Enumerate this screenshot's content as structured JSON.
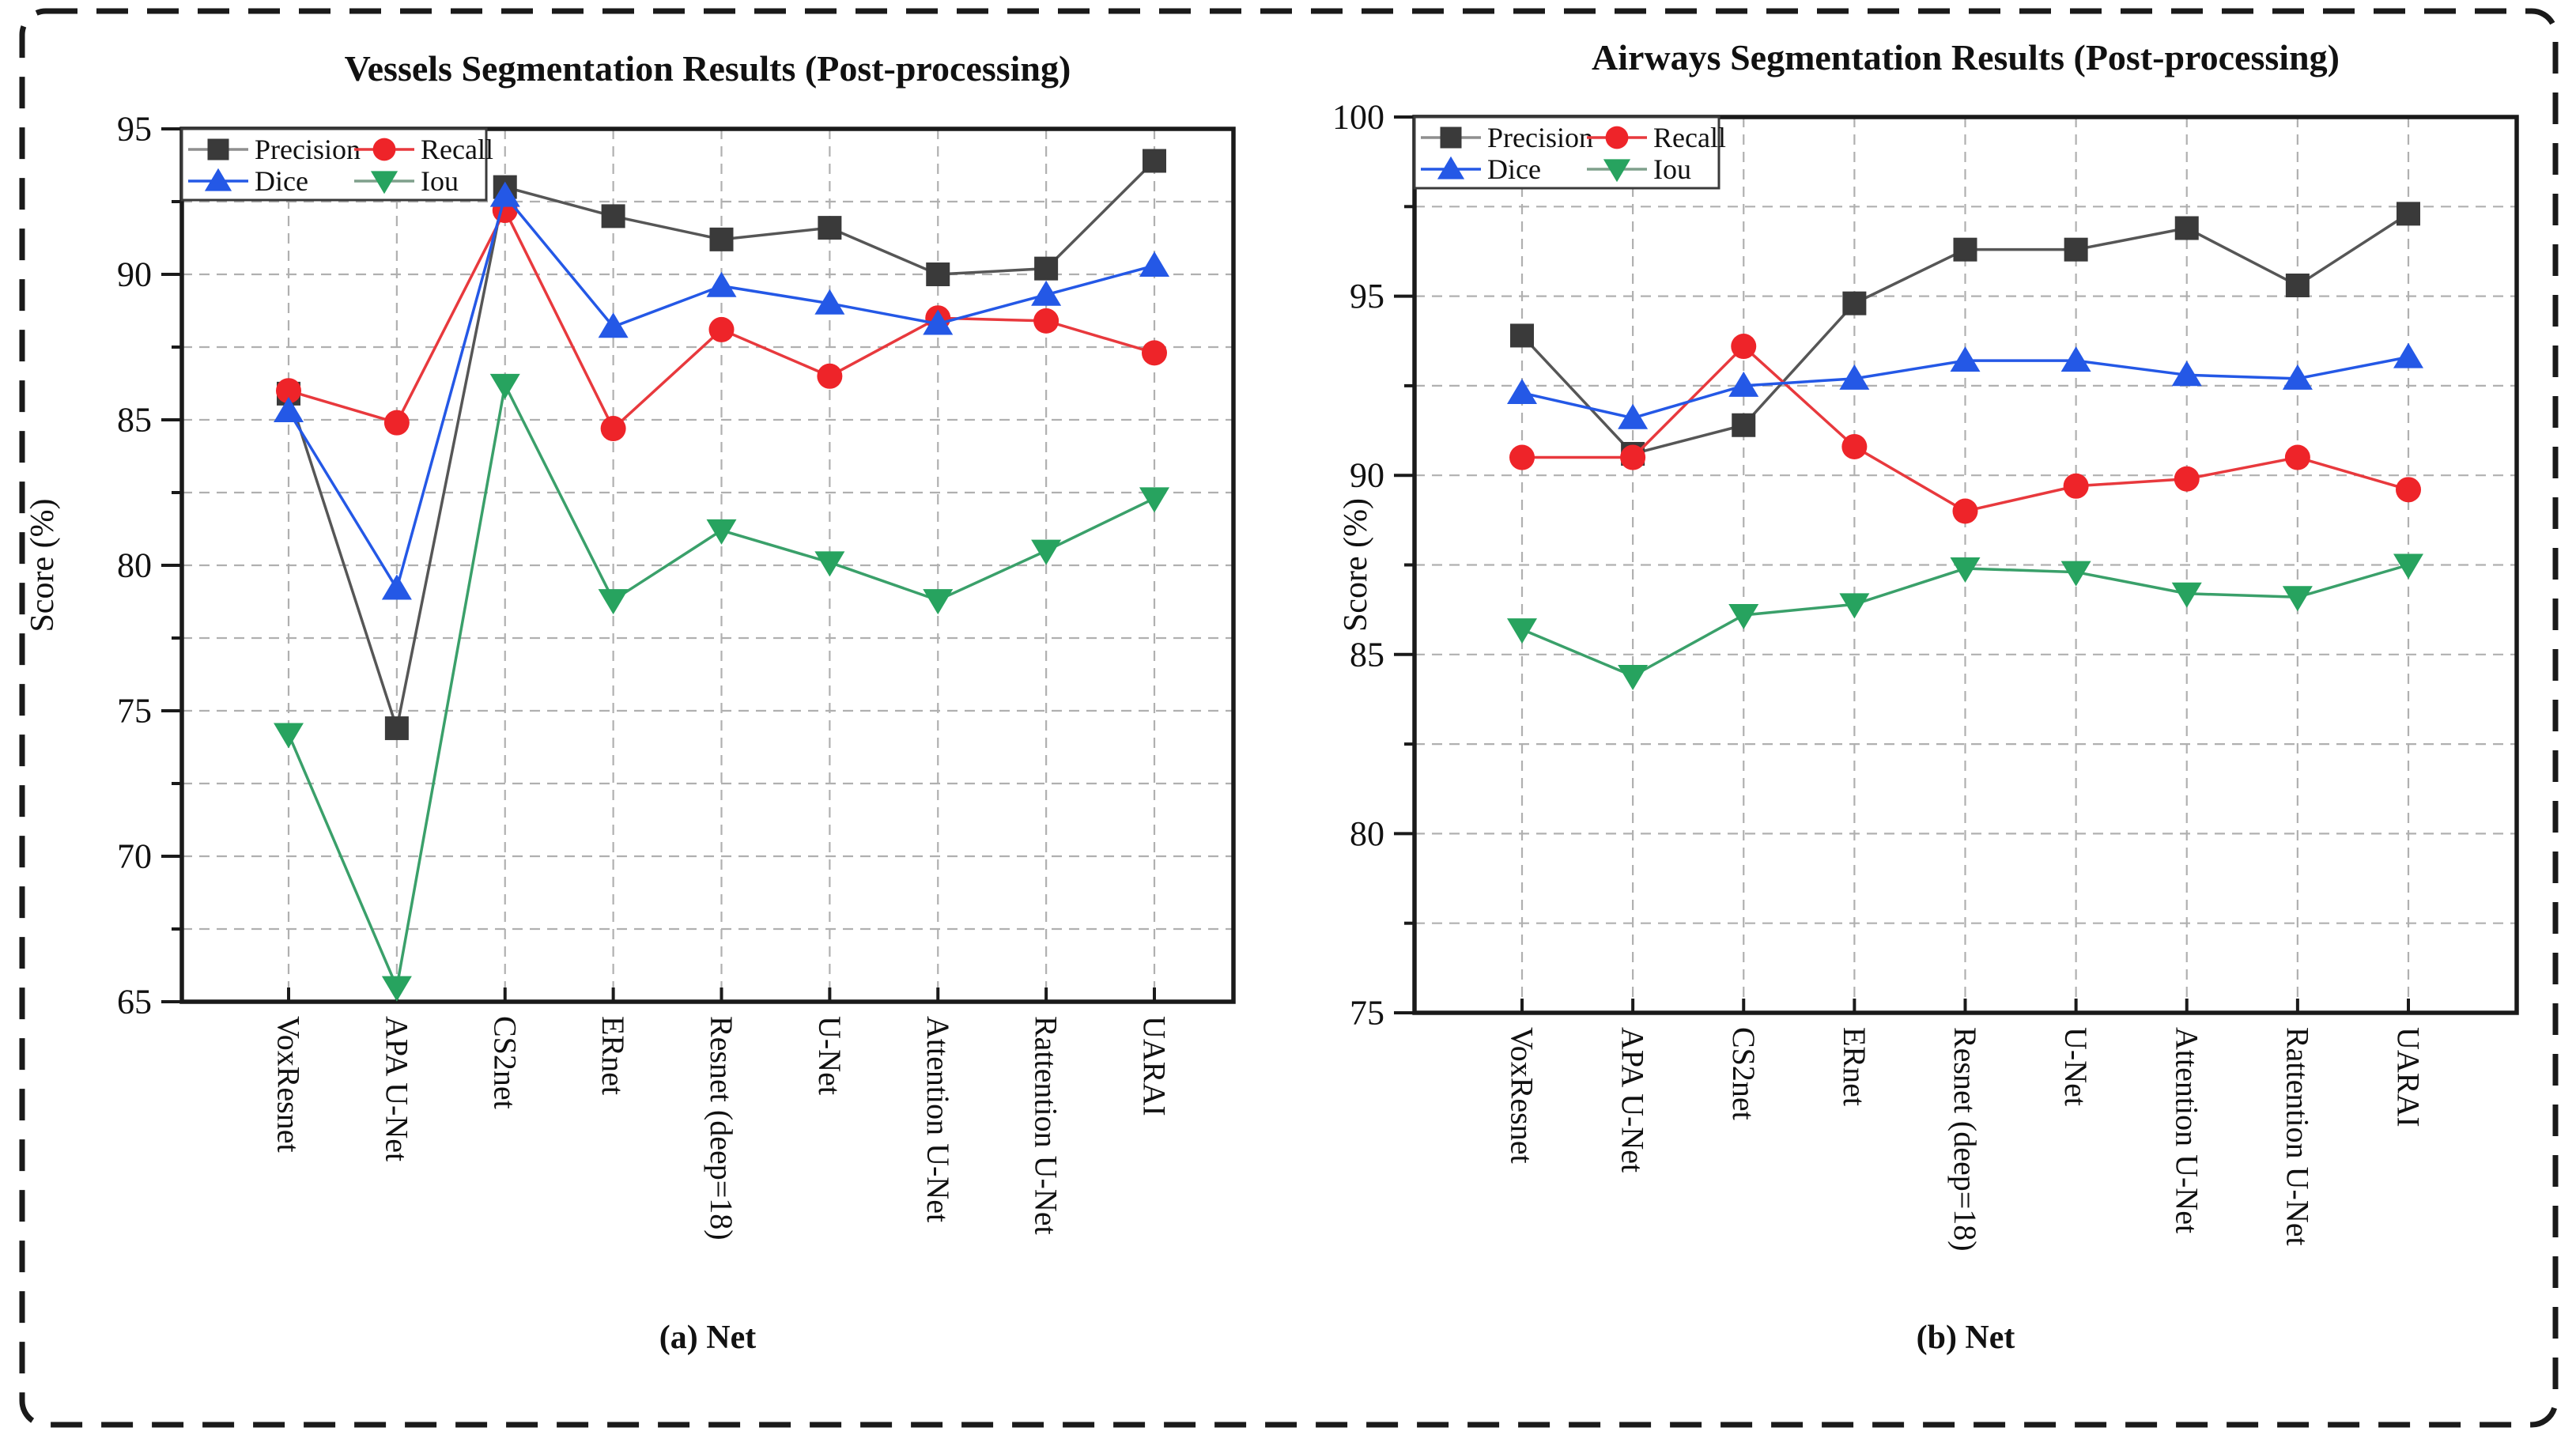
{
  "figure": {
    "background": "#ffffff",
    "border_color": "#1a1a1a",
    "grid_color": "#b0b0b0",
    "axis_color": "#1a1a1a"
  },
  "chart_data": [
    {
      "type": "line",
      "title": "Vessels Segmentation Results (Post-processing)",
      "xlabel": "(a) Net",
      "ylabel": "Score (%)",
      "ylim": [
        65,
        95
      ],
      "ytick_step": 5,
      "grid_step": 2.5,
      "grid": true,
      "legend_position": "top-left",
      "categories": [
        "VoxResnet",
        "APA U-Net",
        "CS2net",
        "ERnet",
        "Resnet (deep=18)",
        "U-Net",
        "Attention U-Net",
        "Rattention U-Net",
        "UARAI"
      ],
      "series": [
        {
          "name": "Precision",
          "marker": "square",
          "color": "#3a3a3a",
          "line_color": "#565656",
          "legend_line_color": "#8f8f8f",
          "values": [
            85.9,
            74.4,
            93.0,
            92.0,
            91.2,
            91.6,
            90.0,
            90.2,
            93.9
          ]
        },
        {
          "name": "Recall",
          "marker": "circle",
          "color": "#ee2429",
          "line_color": "#e8393d",
          "legend_line_color": "#e8393d",
          "values": [
            86.0,
            84.9,
            92.2,
            84.7,
            88.1,
            86.5,
            88.5,
            88.4,
            87.3
          ]
        },
        {
          "name": "Dice",
          "marker": "triangle-up",
          "color": "#2458e6",
          "line_color": "#2458e6",
          "legend_line_color": "#2458e6",
          "values": [
            85.3,
            79.2,
            92.7,
            88.2,
            89.6,
            89.0,
            88.3,
            89.3,
            90.3
          ]
        },
        {
          "name": "Iou",
          "marker": "triangle-down",
          "color": "#27a35f",
          "line_color": "#3aa06a",
          "legend_line_color": "#7fa08c",
          "values": [
            74.2,
            65.5,
            86.2,
            78.8,
            81.2,
            80.1,
            78.8,
            80.5,
            82.3
          ]
        }
      ]
    },
    {
      "type": "line",
      "title": "Airways Segmentation Results (Post-processing)",
      "xlabel": "(b) Net",
      "ylabel": "Score (%)",
      "ylim": [
        75,
        100
      ],
      "ytick_step": 5,
      "grid_step": 2.5,
      "grid": true,
      "legend_position": "top-left",
      "categories": [
        "VoxResnet",
        "APA U-Net",
        "CS2net",
        "ERnet",
        "Resnet (deep=18)",
        "U-Net",
        "Attention U-Net",
        "Rattention U-Net",
        "UARAI"
      ],
      "series": [
        {
          "name": "Precision",
          "marker": "square",
          "color": "#3a3a3a",
          "line_color": "#565656",
          "legend_line_color": "#8f8f8f",
          "values": [
            93.9,
            90.6,
            91.4,
            94.8,
            96.3,
            96.3,
            96.9,
            95.3,
            97.3
          ]
        },
        {
          "name": "Recall",
          "marker": "circle",
          "color": "#ee2429",
          "line_color": "#e8393d",
          "legend_line_color": "#e8393d",
          "values": [
            90.5,
            90.5,
            93.6,
            90.8,
            89.0,
            89.7,
            89.9,
            90.5,
            89.6
          ]
        },
        {
          "name": "Dice",
          "marker": "triangle-up",
          "color": "#2458e6",
          "line_color": "#2458e6",
          "legend_line_color": "#2458e6",
          "values": [
            92.3,
            91.6,
            92.5,
            92.7,
            93.2,
            93.2,
            92.8,
            92.7,
            93.3
          ]
        },
        {
          "name": "Iou",
          "marker": "triangle-down",
          "color": "#27a35f",
          "line_color": "#3aa06a",
          "legend_line_color": "#7fa08c",
          "values": [
            85.7,
            84.4,
            86.1,
            86.4,
            87.4,
            87.3,
            86.7,
            86.6,
            87.5
          ]
        }
      ]
    }
  ]
}
